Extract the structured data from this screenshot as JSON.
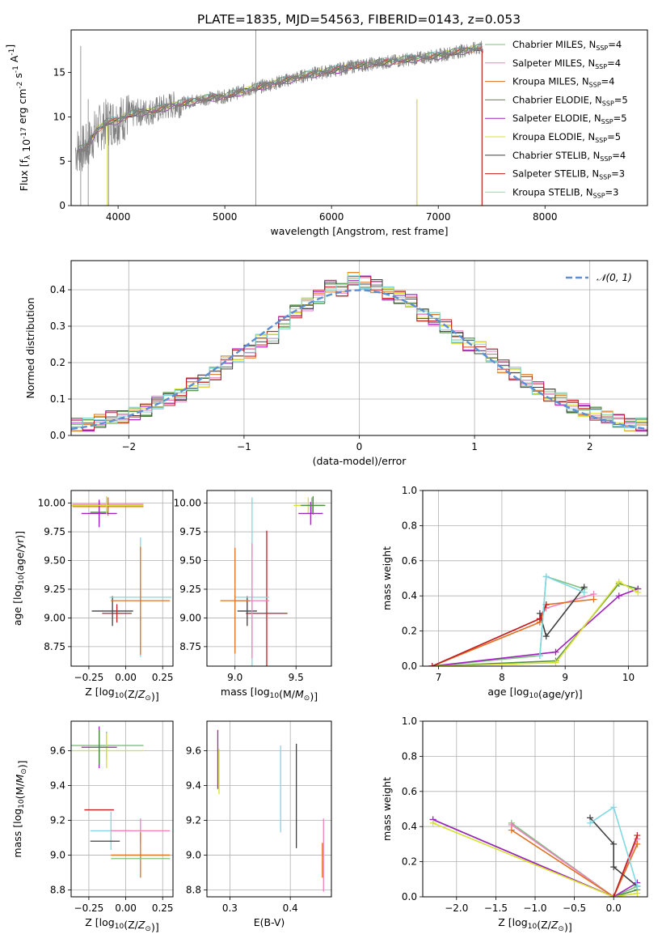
{
  "figure_title": "PLATE=1835, MJD=54563, FIBERID=0143, z=0.053",
  "series_colors": {
    "Chabrier MILES": "#7fbf7f",
    "Salpeter MILES": "#ef7fbf",
    "Kroupa MILES": "#e07020",
    "Chabrier ELODIE": "#4f8f3f",
    "Salpeter ELODIE": "#a020c0",
    "Kroupa ELODIE": "#d8e030",
    "Chabrier STELIB": "#404040",
    "Salpeter STELIB": "#c02020",
    "Kroupa STELIB": "#80d8e0"
  },
  "chart_data": [
    {
      "type": "line",
      "title": "PLATE=1835, MJD=54563, FIBERID=0143, z=0.053",
      "xlabel": "wavelength [Angstrom, rest frame]",
      "ylabel": "Flux [f_λ 10^-17 erg cm^-2 s^-1 A^-1]",
      "xlim": [
        3560,
        8960
      ],
      "ylim": [
        0,
        19.8
      ],
      "xticks": [
        "4000",
        "5000",
        "6000",
        "7000",
        "8000"
      ],
      "yticks": [
        "0",
        "5",
        "10",
        "15"
      ],
      "legend_position": "top-right",
      "legend": [
        {
          "name": "Chabrier MILES",
          "label": "Chabrier MILES, N",
          "sub": "SSP",
          "suffix": "=4"
        },
        {
          "name": "Salpeter MILES",
          "label": "Salpeter MILES, N",
          "sub": "SSP",
          "suffix": "=4"
        },
        {
          "name": "Kroupa MILES",
          "label": "Kroupa MILES, N",
          "sub": "SSP",
          "suffix": "=4"
        },
        {
          "name": "Chabrier ELODIE",
          "label": "Chabrier ELODIE, N",
          "sub": "SSP",
          "suffix": "=5"
        },
        {
          "name": "Salpeter ELODIE",
          "label": "Salpeter ELODIE, N",
          "sub": "SSP",
          "suffix": "=5"
        },
        {
          "name": "Kroupa ELODIE",
          "label": "Kroupa ELODIE, N",
          "sub": "SSP",
          "suffix": "=5"
        },
        {
          "name": "Chabrier STELIB",
          "label": "Chabrier STELIB, N",
          "sub": "SSP",
          "suffix": "=4"
        },
        {
          "name": "Salpeter STELIB",
          "label": "Salpeter STELIB, N",
          "sub": "SSP",
          "suffix": "=3"
        },
        {
          "name": "Kroupa STELIB",
          "label": "Kroupa STELIB, N",
          "sub": "SSP",
          "suffix": "=3"
        }
      ],
      "data_spectrum_color": "#808080",
      "continuum_x": [
        3600,
        3700,
        3800,
        3900,
        4000,
        4100,
        4200,
        4300,
        4400,
        4500,
        4600,
        4700,
        4800,
        4900,
        5000,
        5200,
        5400,
        5600,
        5800,
        6000,
        6200,
        6400,
        6600,
        6800,
        7000,
        7200,
        7400
      ],
      "continuum_y": [
        6.2,
        6.5,
        8.5,
        9.4,
        9.6,
        10.2,
        10.5,
        10.6,
        10.9,
        11.3,
        11.5,
        11.8,
        12.0,
        12.2,
        12.3,
        13.0,
        13.6,
        14.2,
        14.8,
        15.2,
        15.7,
        16.0,
        16.3,
        16.6,
        16.9,
        17.4,
        17.8
      ]
    },
    {
      "type": "bar",
      "xlabel": "(data-model)/error",
      "ylabel": "Normed distribution",
      "xlim": [
        -2.5,
        2.5
      ],
      "ylim": [
        0,
        0.48
      ],
      "xticks": [
        "−2",
        "−1",
        "0",
        "1",
        "2"
      ],
      "yticks": [
        "0.0",
        "0.1",
        "0.2",
        "0.3",
        "0.4"
      ],
      "grid": true,
      "legend_position": "top-right",
      "reference_curve": {
        "name": "𝒩(0, 1)",
        "color": "#5b8fd6",
        "style": "dashed"
      },
      "bin_edges_start": -2.5,
      "bin_width": 0.1,
      "values": [
        0.03,
        0.03,
        0.04,
        0.05,
        0.05,
        0.06,
        0.07,
        0.09,
        0.1,
        0.11,
        0.14,
        0.15,
        0.17,
        0.2,
        0.22,
        0.23,
        0.26,
        0.27,
        0.31,
        0.34,
        0.36,
        0.38,
        0.41,
        0.4,
        0.43,
        0.42,
        0.41,
        0.39,
        0.38,
        0.37,
        0.33,
        0.32,
        0.3,
        0.27,
        0.25,
        0.24,
        0.22,
        0.19,
        0.17,
        0.15,
        0.13,
        0.11,
        0.1,
        0.08,
        0.07,
        0.06,
        0.05,
        0.04,
        0.03,
        0.03
      ]
    },
    {
      "type": "scatter",
      "xlabel": "Z [log10(Z/Z☉)]",
      "ylabel": "age  [log10(age/yr)]",
      "xlim": [
        -0.37,
        0.32
      ],
      "ylim": [
        8.58,
        10.11
      ],
      "xticks": [
        "−0.25",
        "0.00",
        "0.25"
      ],
      "yticks": [
        "8.75",
        "9.00",
        "9.25",
        "9.50",
        "9.75",
        "10.00"
      ],
      "crosses": [
        {
          "series": "Chabrier MILES",
          "x": -0.13,
          "y": 9.98,
          "xerr": 0.25,
          "yerr": 0.07
        },
        {
          "series": "Salpeter MILES",
          "x": -0.12,
          "y": 9.99,
          "xerr": 0.24,
          "yerr": 0.06
        },
        {
          "series": "Kroupa MILES",
          "x": -0.12,
          "y": 9.97,
          "xerr": 0.24,
          "yerr": 0.08
        },
        {
          "series": "Chabrier ELODIE",
          "x": -0.18,
          "y": 9.92,
          "xerr": 0.06,
          "yerr": 0.1
        },
        {
          "series": "Salpeter ELODIE",
          "x": -0.18,
          "y": 9.91,
          "xerr": 0.12,
          "yerr": 0.12
        },
        {
          "series": "Kroupa ELODIE",
          "x": -0.13,
          "y": 9.98,
          "xerr": 0.25,
          "yerr": 0.08
        },
        {
          "series": "Chabrier STELIB",
          "x": -0.09,
          "y": 9.06,
          "xerr": 0.14,
          "yerr": 0.13
        },
        {
          "series": "Salpeter STELIB",
          "x": -0.06,
          "y": 9.04,
          "xerr": 0.1,
          "yerr": 0.08
        },
        {
          "series": "Kroupa STELIB",
          "x": 0.1,
          "y": 9.18,
          "xerr": 0.21,
          "yerr": 0.52
        },
        {
          "series": "Kroupa MILES",
          "x": 0.1,
          "y": 9.15,
          "xerr": 0.2,
          "yerr": 0.47
        }
      ]
    },
    {
      "type": "scatter",
      "xlabel": "mass [log10(M/M☉)]",
      "ylabel": "",
      "xlim": [
        8.77,
        9.79
      ],
      "ylim": [
        8.58,
        10.11
      ],
      "xticks": [
        "9.0",
        "9.5"
      ],
      "yticks": [
        "8.75",
        "9.00",
        "9.25",
        "9.50",
        "9.75",
        "10.00"
      ],
      "crosses": [
        {
          "series": "Chabrier MILES",
          "x": 9.63,
          "y": 9.98,
          "xerr": 0.1,
          "yerr": 0.07
        },
        {
          "series": "Kroupa ELODIE",
          "x": 9.6,
          "y": 9.98,
          "xerr": 0.12,
          "yerr": 0.07
        },
        {
          "series": "Salpeter ELODIE",
          "x": 9.62,
          "y": 9.91,
          "xerr": 0.1,
          "yerr": 0.1
        },
        {
          "series": "Chabrier STELIB",
          "x": 9.1,
          "y": 9.06,
          "xerr": 0.08,
          "yerr": 0.13
        },
        {
          "series": "Salpeter STELIB",
          "x": 9.26,
          "y": 9.04,
          "xerr": 0.17,
          "yerr": 0.72
        },
        {
          "series": "Kroupa STELIB",
          "x": 9.14,
          "y": 9.18,
          "xerr": 0.14,
          "yerr": 0.87
        },
        {
          "series": "Salpeter MILES",
          "x": 9.14,
          "y": 9.15,
          "xerr": 0.14,
          "yerr": 0.5
        },
        {
          "series": "Kroupa MILES",
          "x": 9.0,
          "y": 9.15,
          "xerr": 0.12,
          "yerr": 0.46
        },
        {
          "series": "Chabrier ELODIE",
          "x": 9.64,
          "y": 9.98,
          "xerr": 0.1,
          "yerr": 0.08
        }
      ]
    },
    {
      "type": "line",
      "xlabel": "age  [log10(age/yr)]",
      "ylabel": "mass weight",
      "xlim": [
        6.75,
        10.3
      ],
      "ylim": [
        0,
        1.0
      ],
      "xticks": [
        "7",
        "8",
        "9",
        "10"
      ],
      "yticks": [
        "0.0",
        "0.2",
        "0.4",
        "0.6",
        "0.8",
        "1.0"
      ],
      "grid": true,
      "series": [
        {
          "name": "Chabrier MILES",
          "x": [
            6.9,
            8.6,
            8.7,
            9.3
          ],
          "y": [
            0.0,
            0.06,
            0.51,
            0.44
          ]
        },
        {
          "name": "Salpeter MILES",
          "x": [
            6.9,
            8.6,
            8.7,
            9.45
          ],
          "y": [
            0.0,
            0.27,
            0.33,
            0.41
          ]
        },
        {
          "name": "Kroupa MILES",
          "x": [
            6.9,
            8.6,
            8.7,
            9.45
          ],
          "y": [
            0.0,
            0.25,
            0.35,
            0.38
          ]
        },
        {
          "name": "Chabrier ELODIE",
          "x": [
            6.9,
            8.85,
            9.85,
            10.15
          ],
          "y": [
            0.0,
            0.03,
            0.47,
            0.44
          ]
        },
        {
          "name": "Salpeter ELODIE",
          "x": [
            6.9,
            8.85,
            9.85,
            10.15
          ],
          "y": [
            0.0,
            0.08,
            0.4,
            0.44
          ]
        },
        {
          "name": "Kroupa ELODIE",
          "x": [
            6.9,
            8.85,
            9.85,
            10.15
          ],
          "y": [
            0.0,
            0.02,
            0.48,
            0.42
          ]
        },
        {
          "name": "Chabrier STELIB",
          "x": [
            8.6,
            8.7,
            9.3
          ],
          "y": [
            0.3,
            0.17,
            0.45
          ]
        },
        {
          "name": "Salpeter STELIB",
          "x": [
            6.9,
            8.6,
            8.7
          ],
          "y": [
            0.0,
            0.27,
            0.35
          ]
        },
        {
          "name": "Kroupa STELIB",
          "x": [
            8.6,
            8.7,
            9.3
          ],
          "y": [
            0.06,
            0.51,
            0.42
          ]
        }
      ]
    },
    {
      "type": "scatter",
      "xlabel": "Z [log10(Z/Z☉)]",
      "ylabel": "mass [log10(M/M☉)]",
      "xlim": [
        -0.37,
        0.32
      ],
      "ylim": [
        8.76,
        9.77
      ],
      "xticks": [
        "−0.25",
        "0.00",
        "0.25"
      ],
      "yticks": [
        "8.8",
        "9.0",
        "9.2",
        "9.4",
        "9.6"
      ],
      "crosses": [
        {
          "series": "Chabrier MILES",
          "x": -0.13,
          "y": 9.63,
          "xerr": 0.25,
          "yerr": 0.08
        },
        {
          "series": "Kroupa ELODIE",
          "x": -0.13,
          "y": 9.6,
          "xerr": 0.25,
          "yerr": 0.1
        },
        {
          "series": "Salpeter ELODIE",
          "x": -0.18,
          "y": 9.62,
          "xerr": 0.12,
          "yerr": 0.12
        },
        {
          "series": "Chabrier ELODIE",
          "x": -0.18,
          "y": 9.62,
          "xerr": 0.06,
          "yerr": 0.1
        },
        {
          "series": "Salpeter STELIB",
          "x": -0.18,
          "y": 9.26,
          "xerr": 0.1,
          "yerr": 0.0
        },
        {
          "series": "Kroupa STELIB",
          "x": -0.1,
          "y": 9.14,
          "xerr": 0.14,
          "yerr": 0.11
        },
        {
          "series": "Chabrier STELIB",
          "x": -0.14,
          "y": 9.08,
          "xerr": 0.1,
          "yerr": 0.0
        },
        {
          "series": "Salpeter MILES",
          "x": 0.1,
          "y": 9.14,
          "xerr": 0.2,
          "yerr": 0.07
        },
        {
          "series": "Kroupa MILES",
          "x": 0.1,
          "y": 9.0,
          "xerr": 0.2,
          "yerr": 0.13
        },
        {
          "series": "Chabrier MILES",
          "x": 0.1,
          "y": 8.98,
          "xerr": 0.2,
          "yerr": 0.0
        }
      ]
    },
    {
      "type": "scatter",
      "xlabel": "E(B-V)",
      "ylabel": "",
      "xlim": [
        0.262,
        0.468
      ],
      "ylim": [
        8.76,
        9.77
      ],
      "xticks": [
        "0.3",
        "0.4"
      ],
      "yticks": [
        "8.8",
        "9.0",
        "9.2",
        "9.4",
        "9.6"
      ],
      "crosses": [
        {
          "series": "Salpeter ELODIE",
          "x": 0.28,
          "y": 9.55,
          "xerr": 0.0,
          "yerr": 0.17
        },
        {
          "series": "Kroupa ELODIE",
          "x": 0.282,
          "y": 9.48,
          "xerr": 0.0,
          "yerr": 0.13
        },
        {
          "series": "Kroupa STELIB",
          "x": 0.384,
          "y": 9.38,
          "xerr": 0.0,
          "yerr": 0.25
        },
        {
          "series": "Chabrier STELIB",
          "x": 0.41,
          "y": 9.34,
          "xerr": 0.0,
          "yerr": 0.3
        },
        {
          "series": "Salpeter MILES",
          "x": 0.455,
          "y": 9.0,
          "xerr": 0.0,
          "yerr": 0.21
        },
        {
          "series": "Kroupa MILES",
          "x": 0.453,
          "y": 8.97,
          "xerr": 0.0,
          "yerr": 0.1
        }
      ]
    },
    {
      "type": "line",
      "xlabel": "Z [log10(Z/Z☉)]",
      "ylabel": "mass weight",
      "xlim": [
        -2.43,
        0.43
      ],
      "ylim": [
        0,
        1.0
      ],
      "xticks": [
        "−2.0",
        "−1.5",
        "−1.0",
        "−0.5",
        "0.0"
      ],
      "yticks": [
        "0.0",
        "0.2",
        "0.4",
        "0.6",
        "0.8",
        "1.0"
      ],
      "grid": true,
      "series": [
        {
          "name": "Chabrier MILES",
          "x": [
            -1.3,
            0.0,
            0.3
          ],
          "y": [
            0.42,
            0.0,
            0.06
          ]
        },
        {
          "name": "Salpeter MILES",
          "x": [
            -1.3,
            0.0,
            0.3
          ],
          "y": [
            0.41,
            0.0,
            0.33
          ]
        },
        {
          "name": "Kroupa MILES",
          "x": [
            -1.3,
            0.0,
            0.3
          ],
          "y": [
            0.38,
            0.0,
            0.3
          ]
        },
        {
          "name": "Chabrier ELODIE",
          "x": [
            -2.3,
            0.0,
            0.3
          ],
          "y": [
            0.44,
            0.0,
            0.04
          ]
        },
        {
          "name": "Salpeter ELODIE",
          "x": [
            -2.3,
            0.0,
            0.3
          ],
          "y": [
            0.44,
            0.0,
            0.08
          ]
        },
        {
          "name": "Kroupa ELODIE",
          "x": [
            -2.3,
            0.0,
            0.3
          ],
          "y": [
            0.42,
            0.0,
            0.02
          ]
        },
        {
          "name": "Chabrier STELIB",
          "x": [
            -0.3,
            0.0,
            0.0,
            0.3
          ],
          "y": [
            0.45,
            0.3,
            0.17,
            0.06
          ]
        },
        {
          "name": "Salpeter STELIB",
          "x": [
            0.0,
            0.3
          ],
          "y": [
            0.0,
            0.35
          ]
        },
        {
          "name": "Kroupa STELIB",
          "x": [
            -0.3,
            0.0,
            0.3
          ],
          "y": [
            0.42,
            0.51,
            0.06
          ]
        }
      ]
    }
  ]
}
